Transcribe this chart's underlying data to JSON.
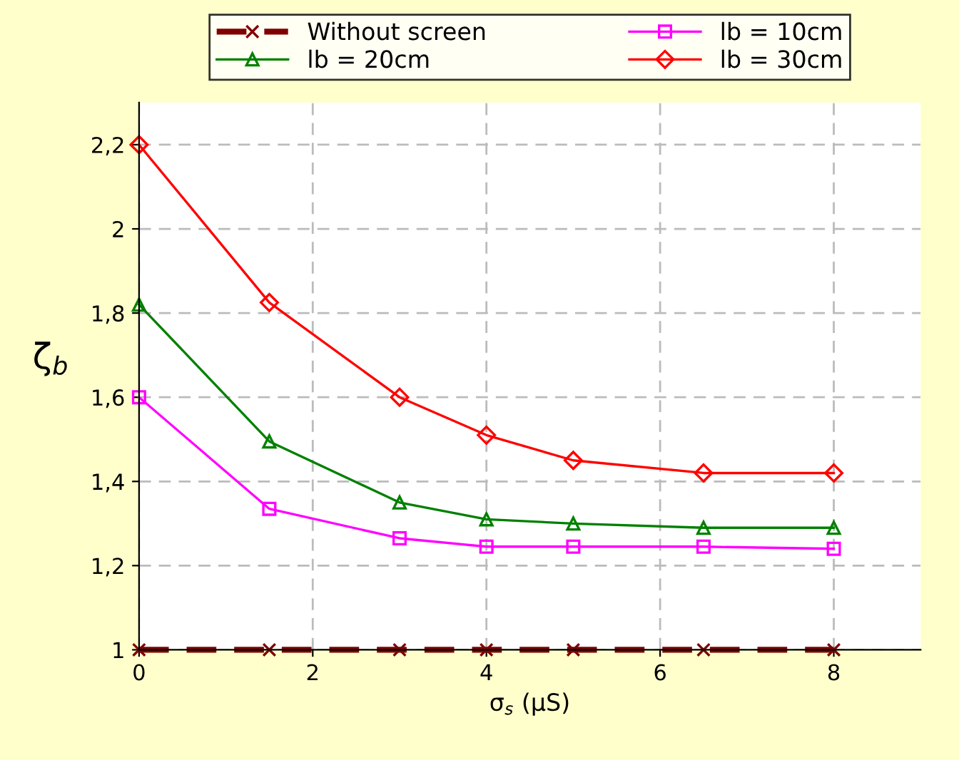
{
  "chart_data": {
    "type": "line",
    "xlabel": "σ$_{s}$ (μS)",
    "ylabel": "ζ$_{b}$",
    "x": [
      0,
      1.5,
      3,
      4,
      5,
      6.5,
      8
    ],
    "series": [
      {
        "name": "Without screen",
        "color": "#800000",
        "values": [
          1,
          1,
          1,
          1,
          1,
          1,
          1
        ],
        "marker": "cross",
        "line_style": "dashed"
      },
      {
        "name": "lb = 10cm",
        "color": "#ff00ff",
        "values": [
          1.6,
          1.335,
          1.265,
          1.245,
          1.245,
          1.245,
          1.24
        ],
        "marker": "square",
        "line_style": "solid"
      },
      {
        "name": "lb = 20cm",
        "color": "#008000",
        "values": [
          1.82,
          1.495,
          1.35,
          1.31,
          1.3,
          1.29,
          1.29
        ],
        "marker": "triangle",
        "line_style": "solid"
      },
      {
        "name": "lb = 30cm",
        "color": "#ff0000",
        "values": [
          2.2,
          1.825,
          1.6,
          1.51,
          1.45,
          1.42,
          1.42
        ],
        "marker": "diamond",
        "line_style": "solid"
      }
    ],
    "xlim": [
      0,
      9
    ],
    "xticks": [
      0,
      2,
      4,
      6,
      8
    ],
    "ylim": [
      1,
      2.3
    ],
    "yticks": [
      {
        "value": 1,
        "label": "1"
      },
      {
        "value": 1.2,
        "label": "1,2"
      },
      {
        "value": 1.4,
        "label": "1,4"
      },
      {
        "value": 1.6,
        "label": "1,6"
      },
      {
        "value": 1.8,
        "label": "1,8"
      },
      {
        "value": 2,
        "label": "2"
      },
      {
        "value": 2.2,
        "label": "2,2"
      }
    ],
    "grid": true,
    "legend": "top"
  }
}
